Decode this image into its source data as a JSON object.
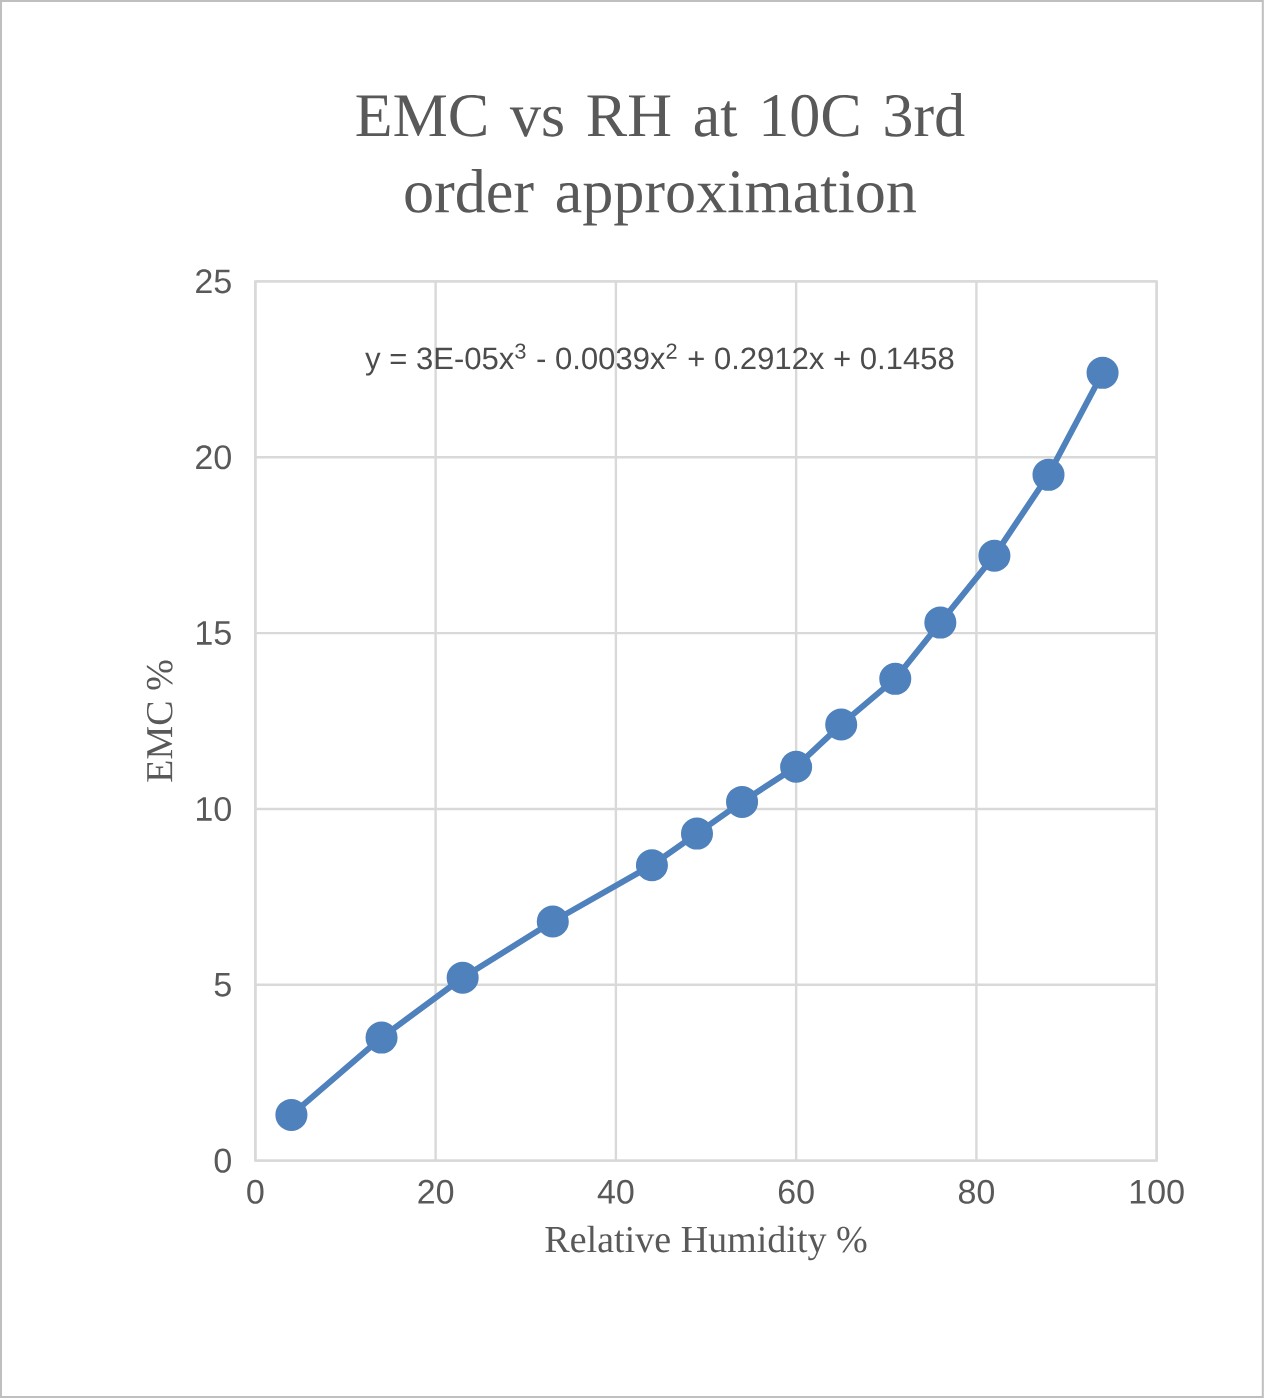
{
  "chart_data": {
    "type": "line",
    "title": "EMC vs RH at 10C 3rd order approximation",
    "xlabel": "Relative Humidity %",
    "ylabel": "EMC %",
    "annotations": [
      "y = 3E-05x$^{3}$ - 0.0039x$^{2}$ + 0.2912x + 0.1458"
    ],
    "series": [
      {
        "color": "#4f81bd",
        "x": [
          4,
          14,
          23,
          33,
          44,
          49,
          54,
          60,
          65,
          71,
          76,
          82,
          88,
          94
        ],
        "values": [
          1.3,
          3.5,
          5.2,
          6.8,
          8.4,
          9.3,
          10.2,
          11.2,
          12.4,
          13.7,
          15.3,
          17.2,
          19.5,
          22.4
        ]
      }
    ],
    "xlim": [
      0,
      100
    ],
    "xticks": [
      0,
      20,
      40,
      60,
      80,
      100
    ],
    "ylim": [
      0,
      25
    ],
    "yticks": [
      0,
      5,
      10,
      15,
      20,
      25
    ],
    "grid": true,
    "marker": "circle",
    "line_style": "solid"
  }
}
